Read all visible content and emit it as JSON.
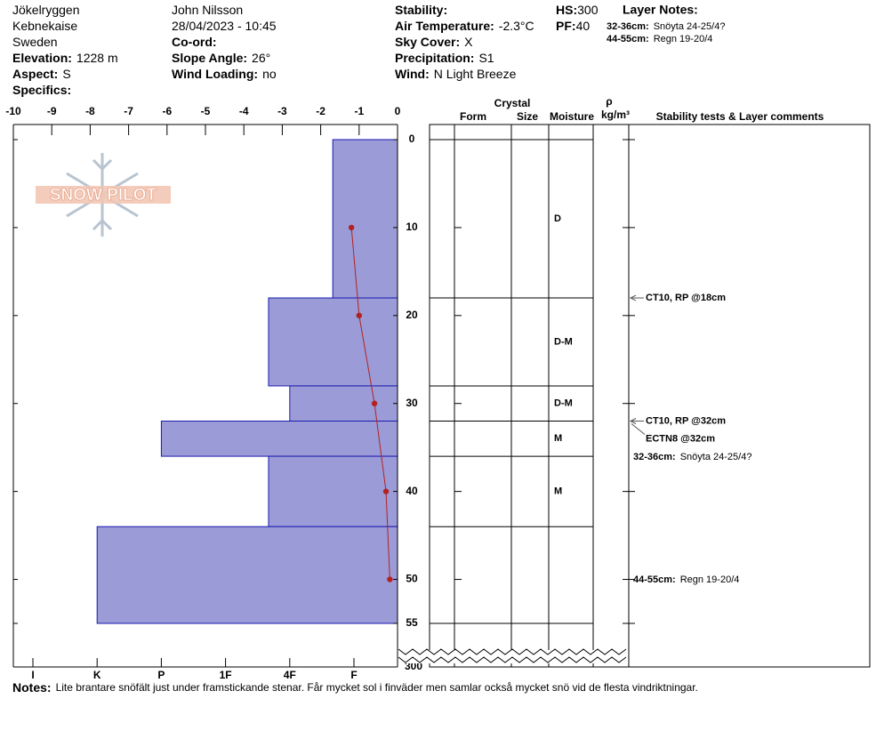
{
  "header": {
    "columns": [
      [
        {
          "value": "Jökelryggen"
        },
        {
          "value": "Kebnekaise"
        },
        {
          "value": "Sweden"
        },
        {
          "label": "Elevation:",
          "value": "1228 m"
        },
        {
          "label": "Aspect:",
          "value": "S"
        },
        {
          "label": "Specifics:"
        }
      ],
      [
        {
          "value": "John Nilsson"
        },
        {
          "value": "28/04/2023 - 10:45"
        },
        {
          "label": "Co-ord:"
        },
        {
          "label": "Slope Angle:",
          "value": "26°"
        },
        {
          "label": "Wind Loading:",
          "value": "no"
        }
      ],
      [
        {
          "label": "Stability:"
        },
        {
          "label": "Air Temperature:",
          "value": "-2.3°C"
        },
        {
          "label": "Sky Cover:",
          "value": "X"
        },
        {
          "label": "Precipitation:",
          "value": "S1"
        },
        {
          "label": "Wind:",
          "value": "N Light Breeze"
        }
      ],
      [
        {
          "label": "HS:",
          "value": "300"
        },
        {
          "label": "PF:",
          "value": "40"
        }
      ]
    ]
  },
  "layer_notes": {
    "title": "Layer Notes:",
    "items": [
      {
        "range": "32-36cm:",
        "text": "Snöyta 24-25/4?"
      },
      {
        "range": "44-55cm:",
        "text": "Regn 19-20/4"
      }
    ]
  },
  "logo": "SNOW PILOT",
  "chart_data": {
    "type": "snow_profile",
    "ylim": [
      0,
      55
    ],
    "yticks": [
      0,
      10,
      20,
      30,
      40,
      50,
      55
    ],
    "total_depth": 300,
    "temperature": {
      "xlim": [
        -10,
        0
      ],
      "xticks": [
        -10,
        -9,
        -8,
        -7,
        -6,
        -5,
        -4,
        -3,
        -2,
        -1,
        0
      ],
      "depth": [
        10,
        20,
        30,
        40,
        50
      ],
      "values": [
        -1.2,
        -1.0,
        -0.6,
        -0.3,
        -0.2
      ],
      "color": "#b22222"
    },
    "hardness": {
      "color": "#9b9bd7",
      "edge": "#1a1ab0",
      "ticks": [
        {
          "value": 6,
          "label": "I"
        },
        {
          "value": 5,
          "label": "K"
        },
        {
          "value": 4,
          "label": "P"
        },
        {
          "value": 3,
          "label": "1F"
        },
        {
          "value": 2,
          "label": "4F"
        },
        {
          "value": 1,
          "label": "F"
        }
      ]
    },
    "layers": [
      {
        "top": 0,
        "bottom": 18,
        "hardness": 1.33,
        "moisture": "D"
      },
      {
        "top": 18,
        "bottom": 28,
        "hardness": 2.33,
        "moisture": "D-M"
      },
      {
        "top": 28,
        "bottom": 32,
        "hardness": 2,
        "moisture": "D-M"
      },
      {
        "top": 32,
        "bottom": 36,
        "hardness": 4,
        "moisture": "M"
      },
      {
        "top": 36,
        "bottom": 44,
        "hardness": 2.33,
        "moisture": "M"
      },
      {
        "top": 44,
        "bottom": 55,
        "hardness": 5
      }
    ],
    "columns": {
      "crystal": "Crystal",
      "form": "Form",
      "size": "Size",
      "moisture": "Moisture",
      "rho": "ρ",
      "density_unit": "kg/m³",
      "comments": "Stability tests & Layer comments"
    },
    "tests": [
      {
        "depth": 18,
        "label": "CT10, RP @18cm"
      },
      {
        "depth": 32,
        "label": "CT10, RP @32cm"
      },
      {
        "depth": 32,
        "label": "ECTN8 @32cm"
      }
    ]
  },
  "notes": {
    "label": "Notes:",
    "text": "Lite brantare snöfält just under framstickande stenar. Får mycket sol i finväder men samlar också mycket snö vid de flesta vindriktningar."
  }
}
